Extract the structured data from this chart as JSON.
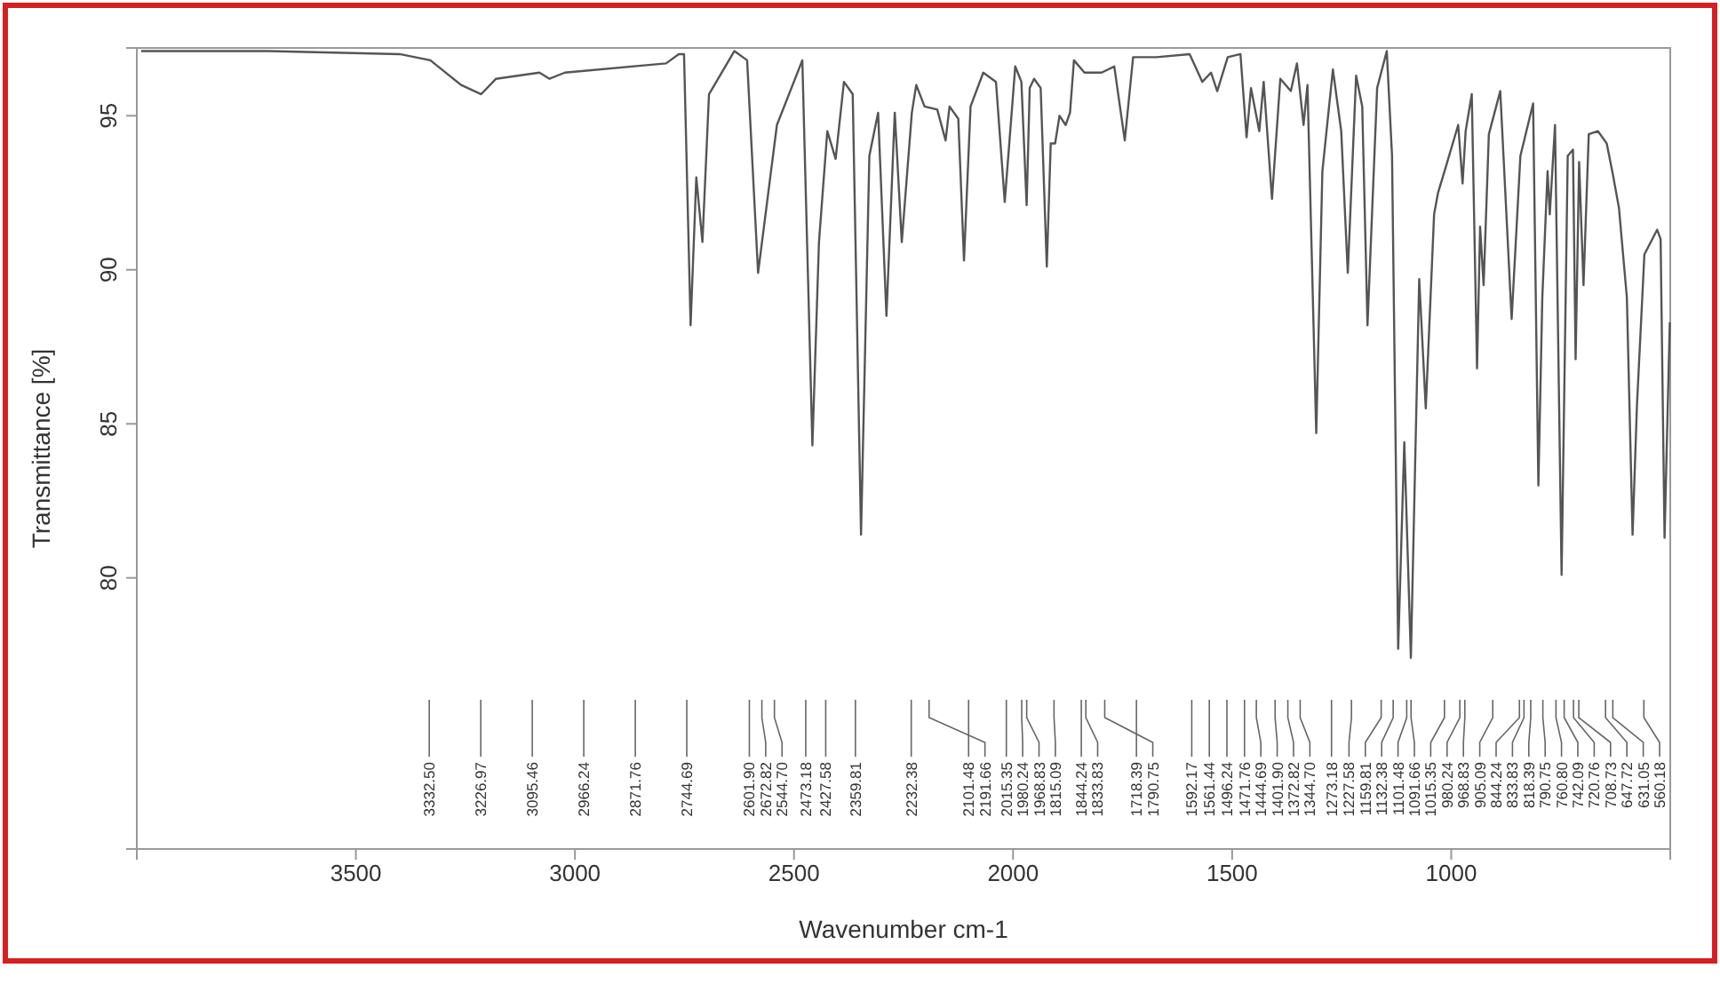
{
  "chart_data": {
    "type": "line",
    "xlabel": "Wavenumber cm-1",
    "ylabel": "Transmittance [%]",
    "xlim": [
      4000,
      500
    ],
    "ylim": [
      71.2,
      97.2
    ],
    "xticks": [
      3500,
      3000,
      2500,
      2000,
      1500,
      1000
    ],
    "yticks": [
      80,
      85,
      90,
      95
    ],
    "grid": false,
    "line_style": "solid",
    "marker": "none",
    "series": [
      {
        "color": "#555555",
        "x": [
          3990,
          3700,
          3400,
          3330,
          3260,
          3214,
          3180,
          3081,
          3058,
          3023,
          2792,
          2763,
          2751,
          2736,
          2723,
          2709,
          2694,
          2636,
          2607,
          2582,
          2539,
          2481,
          2458,
          2443,
          2424,
          2405,
          2386,
          2366,
          2347,
          2328,
          2308,
          2289,
          2270,
          2254,
          2231,
          2221,
          2202,
          2173,
          2154,
          2145,
          2125,
          2112,
          2097,
          2068,
          2039,
          2019,
          1995,
          1981,
          1969,
          1962,
          1952,
          1937,
          1923,
          1914,
          1904,
          1894,
          1880,
          1870,
          1861,
          1837,
          1798,
          1769,
          1745,
          1726,
          1673,
          1597,
          1568,
          1548,
          1534,
          1510,
          1481,
          1467,
          1457,
          1438,
          1428,
          1409,
          1390,
          1366,
          1352,
          1337,
          1328,
          1308,
          1294,
          1270,
          1251,
          1236,
          1217,
          1203,
          1191,
          1169,
          1147,
          1135,
          1121,
          1107,
          1092,
          1073,
          1058,
          1039,
          1030,
          1011,
          984,
          974,
          967,
          953,
          941,
          934,
          926,
          914,
          888,
          862,
          842,
          813,
          801,
          792,
          780,
          775,
          763,
          748,
          734,
          722,
          716,
          708,
          698,
          686,
          665,
          645,
          631,
          617,
          599,
          586,
          576,
          559,
          530,
          522,
          513,
          501
        ],
        "values": [
          97.1,
          97.1,
          97.0,
          96.8,
          96.0,
          95.7,
          96.2,
          96.4,
          96.2,
          96.4,
          96.7,
          97.0,
          97.0,
          88.2,
          93.0,
          90.9,
          95.7,
          97.1,
          96.8,
          89.9,
          94.7,
          96.8,
          84.3,
          90.9,
          94.5,
          93.6,
          96.1,
          95.7,
          81.4,
          93.7,
          95.1,
          88.5,
          95.1,
          90.9,
          95.1,
          96.0,
          95.3,
          95.2,
          94.2,
          95.3,
          94.9,
          90.3,
          95.3,
          96.4,
          96.1,
          92.2,
          96.6,
          96.1,
          92.1,
          95.9,
          96.2,
          95.9,
          90.1,
          94.1,
          94.1,
          95.0,
          94.7,
          95.1,
          96.8,
          96.4,
          96.4,
          96.6,
          94.2,
          96.9,
          96.9,
          97.0,
          96.1,
          96.4,
          95.8,
          96.9,
          97.0,
          94.3,
          95.9,
          94.5,
          96.1,
          92.3,
          96.2,
          95.8,
          96.7,
          94.7,
          96.0,
          84.7,
          93.2,
          96.5,
          94.5,
          89.9,
          96.3,
          95.3,
          88.2,
          95.9,
          97.1,
          93.7,
          77.7,
          84.4,
          77.4,
          89.7,
          85.5,
          91.8,
          92.5,
          93.4,
          94.7,
          92.8,
          94.5,
          95.7,
          86.8,
          91.4,
          89.5,
          94.4,
          95.8,
          88.4,
          93.7,
          95.4,
          83.0,
          89.1,
          93.2,
          91.8,
          94.7,
          80.1,
          93.7,
          93.9,
          87.1,
          93.5,
          89.5,
          94.4,
          94.5,
          94.1,
          93.1,
          92.0,
          89.1,
          81.4,
          85.6,
          90.5,
          91.3,
          91.0,
          81.3,
          88.3
        ]
      }
    ],
    "annotations": [
      {
        "text": "3332.50",
        "x": 3332.5
      },
      "3226.97",
      "3095.46",
      "2966.24",
      "2871.76",
      {
        "text": "2744.69",
        "x": 2744.69
      },
      {
        "text": "2601.90",
        "x": 2601.9
      },
      "2672.82",
      {
        "text": "2544.70",
        "x": 2544.7
      },
      {
        "text": "2473.18",
        "x": 2473.18
      },
      {
        "text": "2427.58",
        "x": 2427.58
      },
      {
        "text": "2359.81",
        "x": 2359.81
      },
      {
        "text": "2232.38",
        "x": 2232.38
      },
      {
        "text": "2101.48",
        "x": 2101.48
      },
      {
        "text": "2191.66",
        "x": 2191.66
      },
      {
        "text": "2015.35",
        "x": 2015.35
      },
      {
        "text": "1980.24",
        "x": 1980.24
      },
      {
        "text": "1968.83",
        "x": 1968.83
      },
      "1815.09",
      {
        "text": "1844.24",
        "x": 1844.24
      },
      {
        "text": "1833.83",
        "x": 1833.83
      },
      {
        "text": "1718.39",
        "x": 1718.39
      },
      {
        "text": "1790.75",
        "x": 1790.75
      },
      {
        "text": "1592.17",
        "x": 1592.17
      },
      "1561.44",
      "1496.24",
      {
        "text": "1471.76",
        "x": 1471.76
      },
      {
        "text": "1444.69",
        "x": 1444.69
      },
      {
        "text": "1401.90",
        "x": 1401.9
      },
      {
        "text": "1372.82",
        "x": 1372.82
      },
      {
        "text": "1344.70",
        "x": 1344.7
      },
      {
        "text": "1273.18",
        "x": 1273.18
      },
      {
        "text": "1227.58",
        "x": 1227.58
      },
      {
        "text": "1159.81",
        "x": 1159.81
      },
      {
        "text": "1132.38",
        "x": 1132.38
      },
      {
        "text": "1101.48",
        "x": 1101.48
      },
      {
        "text": "1091.66",
        "x": 1091.66
      },
      {
        "text": "1015.35",
        "x": 1015.35
      },
      {
        "text": "980.24",
        "x": 980.24
      },
      {
        "text": "968.83",
        "x": 968.83
      },
      {
        "text": "905.09",
        "x": 905.09
      },
      {
        "text": "844.24",
        "x": 844.24
      },
      {
        "text": "833.83",
        "x": 833.83
      },
      {
        "text": "818.39",
        "x": 818.39
      },
      {
        "text": "790.75",
        "x": 790.75
      },
      {
        "text": "760.80",
        "x": 760.8
      },
      {
        "text": "742.09",
        "x": 742.09
      },
      {
        "text": "720.76",
        "x": 720.76
      },
      {
        "text": "708.73",
        "x": 708.73
      },
      {
        "text": "647.72",
        "x": 647.72
      },
      {
        "text": "631.05",
        "x": 631.05
      },
      {
        "text": "560.18",
        "x": 560.18
      }
    ]
  }
}
